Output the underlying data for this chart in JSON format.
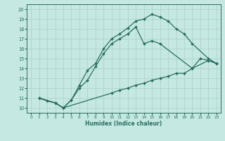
{
  "xlabel": "Humidex (Indice chaleur)",
  "bg_color": "#c5e8e2",
  "grid_color": "#aed4cc",
  "line_color": "#2a6e62",
  "xlim": [
    -0.5,
    23.5
  ],
  "ylim": [
    9.5,
    20.5
  ],
  "xticks": [
    0,
    1,
    2,
    3,
    4,
    5,
    6,
    7,
    8,
    9,
    10,
    11,
    12,
    13,
    14,
    15,
    16,
    17,
    18,
    19,
    20,
    21,
    22,
    23
  ],
  "yticks": [
    10,
    11,
    12,
    13,
    14,
    15,
    16,
    17,
    18,
    19,
    20
  ],
  "line1_x": [
    1,
    2,
    3,
    4,
    5,
    6,
    7,
    8,
    9,
    10,
    11,
    12,
    13,
    14,
    15,
    16,
    17,
    18,
    19,
    20,
    22,
    23
  ],
  "line1_y": [
    11.0,
    10.7,
    10.5,
    10.0,
    10.8,
    12.3,
    13.8,
    14.5,
    16.0,
    17.0,
    17.5,
    18.1,
    18.8,
    19.0,
    19.5,
    19.2,
    18.8,
    18.0,
    17.5,
    16.5,
    15.0,
    14.5
  ],
  "line2_x": [
    1,
    3,
    4,
    5,
    6,
    7,
    8,
    9,
    10,
    11,
    12,
    13,
    14,
    15,
    16,
    20,
    21,
    22,
    23
  ],
  "line2_y": [
    11.0,
    10.5,
    10.0,
    10.8,
    12.0,
    12.8,
    14.2,
    15.5,
    16.5,
    17.0,
    17.5,
    18.2,
    16.5,
    16.8,
    16.5,
    14.0,
    15.0,
    14.8,
    14.5
  ],
  "line3_x": [
    1,
    3,
    4,
    10,
    11,
    12,
    13,
    14,
    15,
    16,
    17,
    18,
    19,
    20,
    22,
    23
  ],
  "line3_y": [
    11.0,
    10.5,
    10.0,
    11.5,
    11.8,
    12.0,
    12.3,
    12.5,
    12.8,
    13.0,
    13.2,
    13.5,
    13.5,
    14.0,
    14.8,
    14.5
  ]
}
